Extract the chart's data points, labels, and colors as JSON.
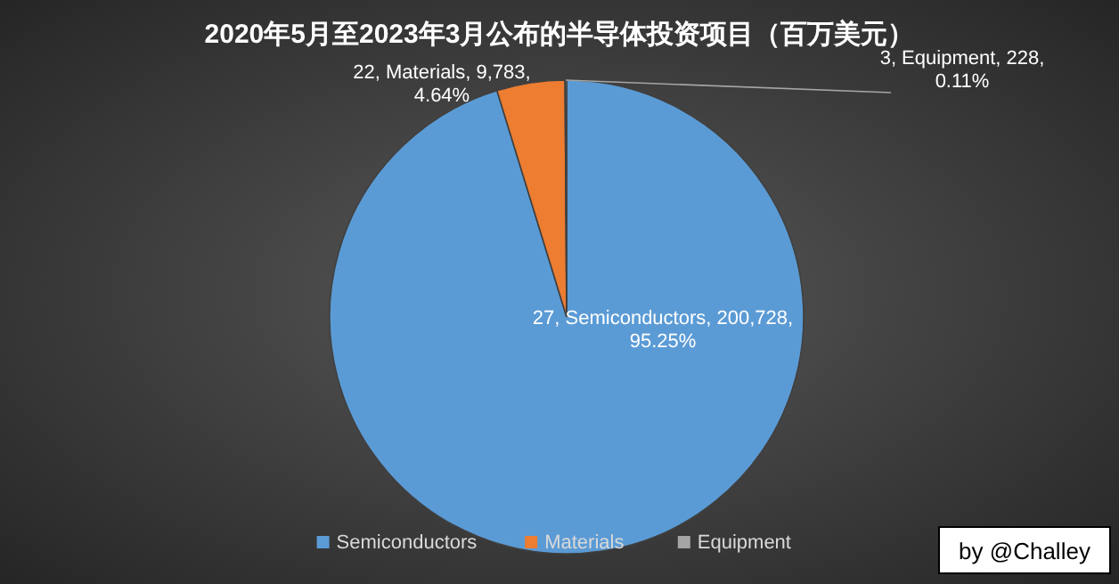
{
  "chart_data": {
    "type": "pie",
    "title": "2020年5月至2023年3月公布的半导体投资项目（百万美元）",
    "categories": [
      "Semiconductors",
      "Materials",
      "Equipment"
    ],
    "values": [
      200728,
      9783,
      228
    ],
    "colors": [
      "#5b9bd5",
      "#ed7d31",
      "#a5a5a5"
    ],
    "value_labels": [
      "27, Semiconductors, 200,728, 95.25%",
      "22, Materials, 9,783, 4.64%",
      "3, Equipment, 228, 0.11%"
    ],
    "legend": "bottom",
    "annotations": [
      "by @Challey"
    ]
  }
}
